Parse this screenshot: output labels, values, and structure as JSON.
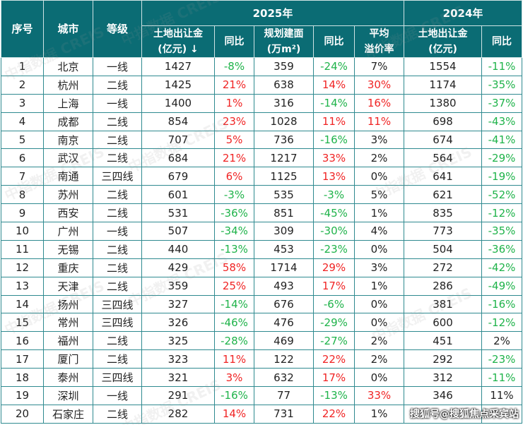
{
  "header": {
    "seq": "序号",
    "city": "城市",
    "tier": "等级",
    "year2025": "2025年",
    "year2024": "2024年",
    "land_revenue": "土地出让金",
    "land_unit": "(亿元) ↓",
    "yoy": "同比",
    "plan_area": "规划建面",
    "area_unit": "(万m²)",
    "avg": "平均",
    "premium": "溢价率",
    "land_revenue_2024": "土地出让金",
    "land_unit_2024": "(亿元)",
    "yoy_2024": "同比"
  },
  "rows": [
    {
      "n": "1",
      "city": "北京",
      "tier": "一线",
      "rev": "1427",
      "ryoy": "-8%",
      "rc": "g",
      "area": "359",
      "ayoy": "-24%",
      "ac": "g",
      "prem": "7%",
      "pc": "k",
      "rev24": "1554",
      "y24": "-11%",
      "yc": "g"
    },
    {
      "n": "2",
      "city": "杭州",
      "tier": "二线",
      "rev": "1425",
      "ryoy": "21%",
      "rc": "r",
      "area": "638",
      "ayoy": "14%",
      "ac": "r",
      "prem": "30%",
      "pc": "r",
      "rev24": "1174",
      "y24": "-35%",
      "yc": "g"
    },
    {
      "n": "3",
      "city": "上海",
      "tier": "一线",
      "rev": "1400",
      "ryoy": "1%",
      "rc": "r",
      "area": "316",
      "ayoy": "-14%",
      "ac": "g",
      "prem": "16%",
      "pc": "r",
      "rev24": "1380",
      "y24": "-37%",
      "yc": "g"
    },
    {
      "n": "4",
      "city": "成都",
      "tier": "二线",
      "rev": "854",
      "ryoy": "23%",
      "rc": "r",
      "area": "1028",
      "ayoy": "11%",
      "ac": "r",
      "prem": "11%",
      "pc": "r",
      "rev24": "698",
      "y24": "-43%",
      "yc": "g"
    },
    {
      "n": "5",
      "city": "南京",
      "tier": "二线",
      "rev": "707",
      "ryoy": "5%",
      "rc": "r",
      "area": "736",
      "ayoy": "-16%",
      "ac": "g",
      "prem": "3%",
      "pc": "k",
      "rev24": "674",
      "y24": "-41%",
      "yc": "g"
    },
    {
      "n": "6",
      "city": "武汉",
      "tier": "二线",
      "rev": "684",
      "ryoy": "21%",
      "rc": "r",
      "area": "1217",
      "ayoy": "33%",
      "ac": "r",
      "prem": "2%",
      "pc": "k",
      "rev24": "564",
      "y24": "-29%",
      "yc": "g"
    },
    {
      "n": "7",
      "city": "南通",
      "tier": "三四线",
      "rev": "679",
      "ryoy": "6%",
      "rc": "r",
      "area": "1125",
      "ayoy": "13%",
      "ac": "r",
      "prem": "0%",
      "pc": "k",
      "rev24": "641",
      "y24": "-19%",
      "yc": "g"
    },
    {
      "n": "8",
      "city": "苏州",
      "tier": "二线",
      "rev": "601",
      "ryoy": "-3%",
      "rc": "g",
      "area": "535",
      "ayoy": "-3%",
      "ac": "g",
      "prem": "5%",
      "pc": "k",
      "rev24": "621",
      "y24": "-52%",
      "yc": "g"
    },
    {
      "n": "9",
      "city": "西安",
      "tier": "二线",
      "rev": "531",
      "ryoy": "-36%",
      "rc": "g",
      "area": "851",
      "ayoy": "-45%",
      "ac": "g",
      "prem": "1%",
      "pc": "k",
      "rev24": "835",
      "y24": "-12%",
      "yc": "g"
    },
    {
      "n": "10",
      "city": "广州",
      "tier": "一线",
      "rev": "507",
      "ryoy": "-34%",
      "rc": "g",
      "area": "309",
      "ayoy": "-30%",
      "ac": "g",
      "prem": "4%",
      "pc": "k",
      "rev24": "773",
      "y24": "-35%",
      "yc": "g"
    },
    {
      "n": "11",
      "city": "无锡",
      "tier": "二线",
      "rev": "440",
      "ryoy": "-13%",
      "rc": "g",
      "area": "453",
      "ayoy": "-23%",
      "ac": "g",
      "prem": "0%",
      "pc": "k",
      "rev24": "504",
      "y24": "-36%",
      "yc": "g"
    },
    {
      "n": "12",
      "city": "重庆",
      "tier": "二线",
      "rev": "429",
      "ryoy": "58%",
      "rc": "r",
      "area": "1714",
      "ayoy": "29%",
      "ac": "r",
      "prem": "3%",
      "pc": "k",
      "rev24": "272",
      "y24": "-42%",
      "yc": "g"
    },
    {
      "n": "13",
      "city": "天津",
      "tier": "二线",
      "rev": "359",
      "ryoy": "25%",
      "rc": "r",
      "area": "493",
      "ayoy": "17%",
      "ac": "r",
      "prem": "1%",
      "pc": "k",
      "rev24": "286",
      "y24": "-49%",
      "yc": "g"
    },
    {
      "n": "14",
      "city": "扬州",
      "tier": "三四线",
      "rev": "327",
      "ryoy": "-14%",
      "rc": "g",
      "area": "676",
      "ayoy": "-6%",
      "ac": "g",
      "prem": "0%",
      "pc": "k",
      "rev24": "381",
      "y24": "-16%",
      "yc": "g"
    },
    {
      "n": "15",
      "city": "常州",
      "tier": "三四线",
      "rev": "326",
      "ryoy": "-46%",
      "rc": "g",
      "area": "476",
      "ayoy": "-29%",
      "ac": "g",
      "prem": "0%",
      "pc": "k",
      "rev24": "600",
      "y24": "-12%",
      "yc": "g"
    },
    {
      "n": "16",
      "city": "福州",
      "tier": "二线",
      "rev": "325",
      "ryoy": "-28%",
      "rc": "g",
      "area": "469",
      "ayoy": "-27%",
      "ac": "g",
      "prem": "2%",
      "pc": "k",
      "rev24": "451",
      "y24": "2%",
      "yc": "k"
    },
    {
      "n": "17",
      "city": "厦门",
      "tier": "二线",
      "rev": "323",
      "ryoy": "11%",
      "rc": "r",
      "area": "122",
      "ayoy": "22%",
      "ac": "r",
      "prem": "2%",
      "pc": "k",
      "rev24": "292",
      "y24": "-23%",
      "yc": "g"
    },
    {
      "n": "18",
      "city": "泰州",
      "tier": "三四线",
      "rev": "321",
      "ryoy": "3%",
      "rc": "r",
      "area": "632",
      "ayoy": "17%",
      "ac": "r",
      "prem": "0%",
      "pc": "k",
      "rev24": "312",
      "y24": "-11%",
      "yc": "g"
    },
    {
      "n": "19",
      "city": "深圳",
      "tier": "一线",
      "rev": "291",
      "ryoy": "-16%",
      "rc": "g",
      "area": "77",
      "ayoy": "-13%",
      "ac": "g",
      "prem": "33%",
      "pc": "r",
      "rev24": "346",
      "y24": "11%",
      "yc": "k"
    },
    {
      "n": "20",
      "city": "石家庄",
      "tier": "二线",
      "rev": "282",
      "ryoy": "14%",
      "rc": "r",
      "area": "731",
      "ayoy": "22%",
      "ac": "r",
      "prem": "1%",
      "pc": "k",
      "rev24": "",
      "y24": "",
      "yc": "k"
    }
  ],
  "watermark": "中指数据 CREIS",
  "source_watermark": "搜狐号@搜狐焦点采宾站",
  "colors": {
    "header": "#0b6c74",
    "up": "#f02424",
    "down": "#1fb34a"
  }
}
